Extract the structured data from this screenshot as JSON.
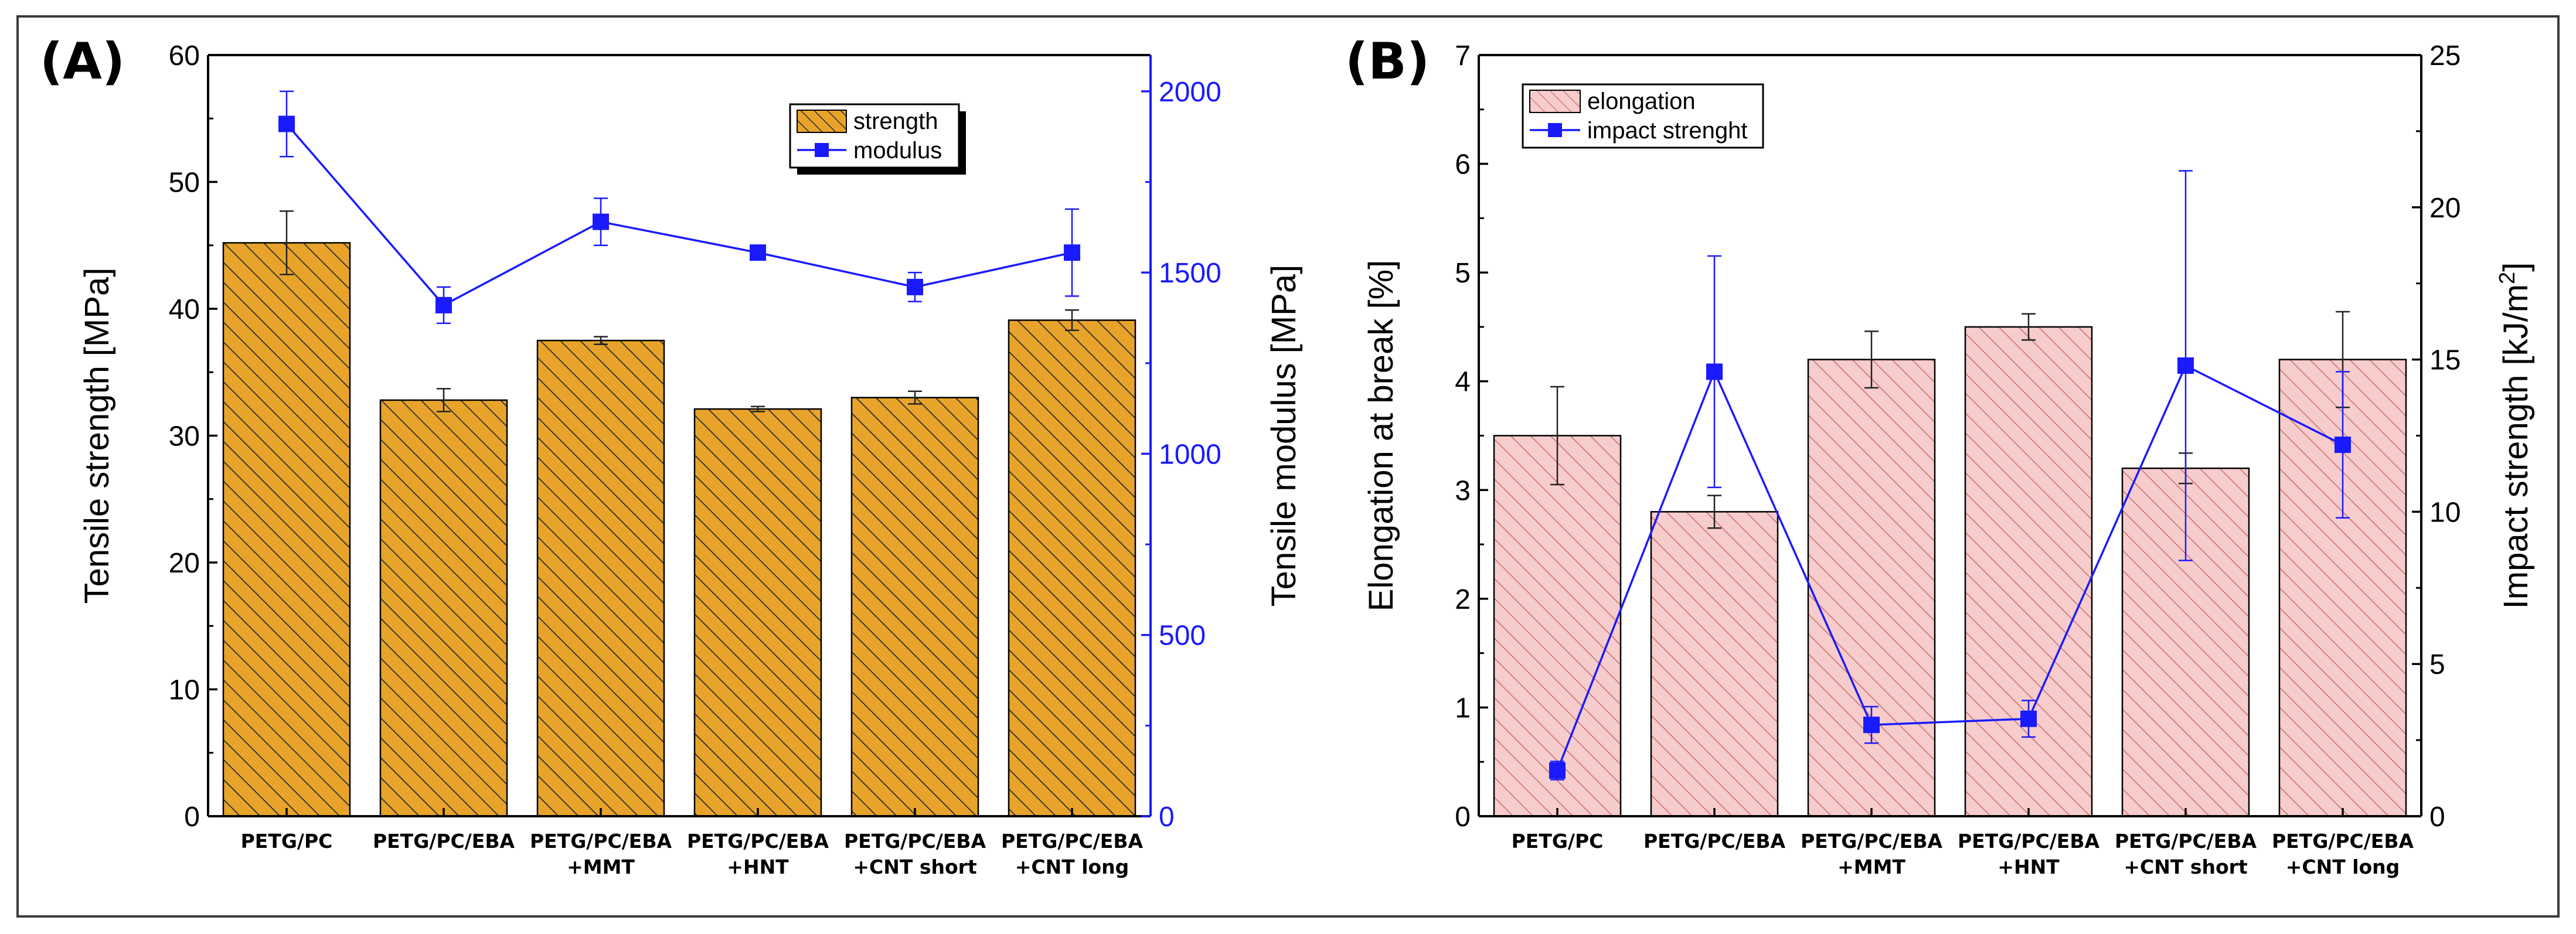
{
  "chart_data": [
    {
      "panel_label": "(A)",
      "type": "bar",
      "categories": [
        [
          "PETG/PC"
        ],
        [
          "PETG/PC/EBA"
        ],
        [
          "PETG/PC/EBA",
          "+MMT"
        ],
        [
          "PETG/PC/EBA",
          "+HNT"
        ],
        [
          "PETG/PC/EBA",
          "+CNT short"
        ],
        [
          "PETG/PC/EBA",
          "+CNT long"
        ]
      ],
      "ylabel": "Tensile strength [MPa]",
      "ylim": [
        0,
        60
      ],
      "yticks": [
        0,
        10,
        20,
        30,
        40,
        50,
        60
      ],
      "y2label": "Tensile modulus [MPa]",
      "y2lim": [
        0,
        2100
      ],
      "y2ticks": [
        0,
        500,
        1000,
        1500,
        2000
      ],
      "legend_position": "top-right",
      "series": [
        {
          "name": "strength",
          "kind": "bar",
          "axis": "left",
          "fill": "#e8a42a",
          "hatch": "#2b2b2b",
          "values": [
            45.2,
            32.8,
            37.5,
            32.1,
            33.0,
            39.1
          ],
          "errors": [
            2.5,
            0.9,
            0.3,
            0.2,
            0.5,
            0.8
          ]
        },
        {
          "name": "modulus",
          "kind": "line",
          "axis": "right",
          "color": "#1a1aff",
          "values": [
            1910,
            1410,
            1640,
            1555,
            1460,
            1555
          ],
          "errors": [
            90,
            50,
            65,
            0,
            40,
            120
          ]
        }
      ]
    },
    {
      "panel_label": "(B)",
      "type": "bar",
      "categories": [
        [
          "PETG/PC"
        ],
        [
          "PETG/PC/EBA"
        ],
        [
          "PETG/PC/EBA",
          "+MMT"
        ],
        [
          "PETG/PC/EBA",
          "+HNT"
        ],
        [
          "PETG/PC/EBA",
          "+CNT short"
        ],
        [
          "PETG/PC/EBA",
          "+CNT long"
        ]
      ],
      "ylabel": "Elongation at break [%]",
      "ylim": [
        0,
        7
      ],
      "yticks": [
        0,
        1,
        2,
        3,
        4,
        5,
        6,
        7
      ],
      "y2label": "Impact strength [kJ/m",
      "y2label_superscript": "2",
      "y2label_end": "]",
      "y2lim": [
        0,
        25
      ],
      "y2ticks": [
        0,
        5,
        10,
        15,
        20,
        25
      ],
      "legend_position": "top-left",
      "series": [
        {
          "name": "elongation",
          "kind": "bar",
          "axis": "left",
          "fill": "#f6cccc",
          "hatch": "#c25a5a",
          "values": [
            3.5,
            2.8,
            4.2,
            4.5,
            3.2,
            4.2
          ],
          "errors": [
            0.45,
            0.15,
            0.26,
            0.12,
            0.14,
            0.44
          ]
        },
        {
          "name": "impact strenght",
          "kind": "line",
          "axis": "right",
          "color": "#1a1aff",
          "values": [
            1.5,
            14.6,
            3.0,
            3.2,
            14.8,
            12.2
          ],
          "errors": [
            0.3,
            3.8,
            0.6,
            0.6,
            6.4,
            2.4
          ]
        }
      ]
    }
  ]
}
